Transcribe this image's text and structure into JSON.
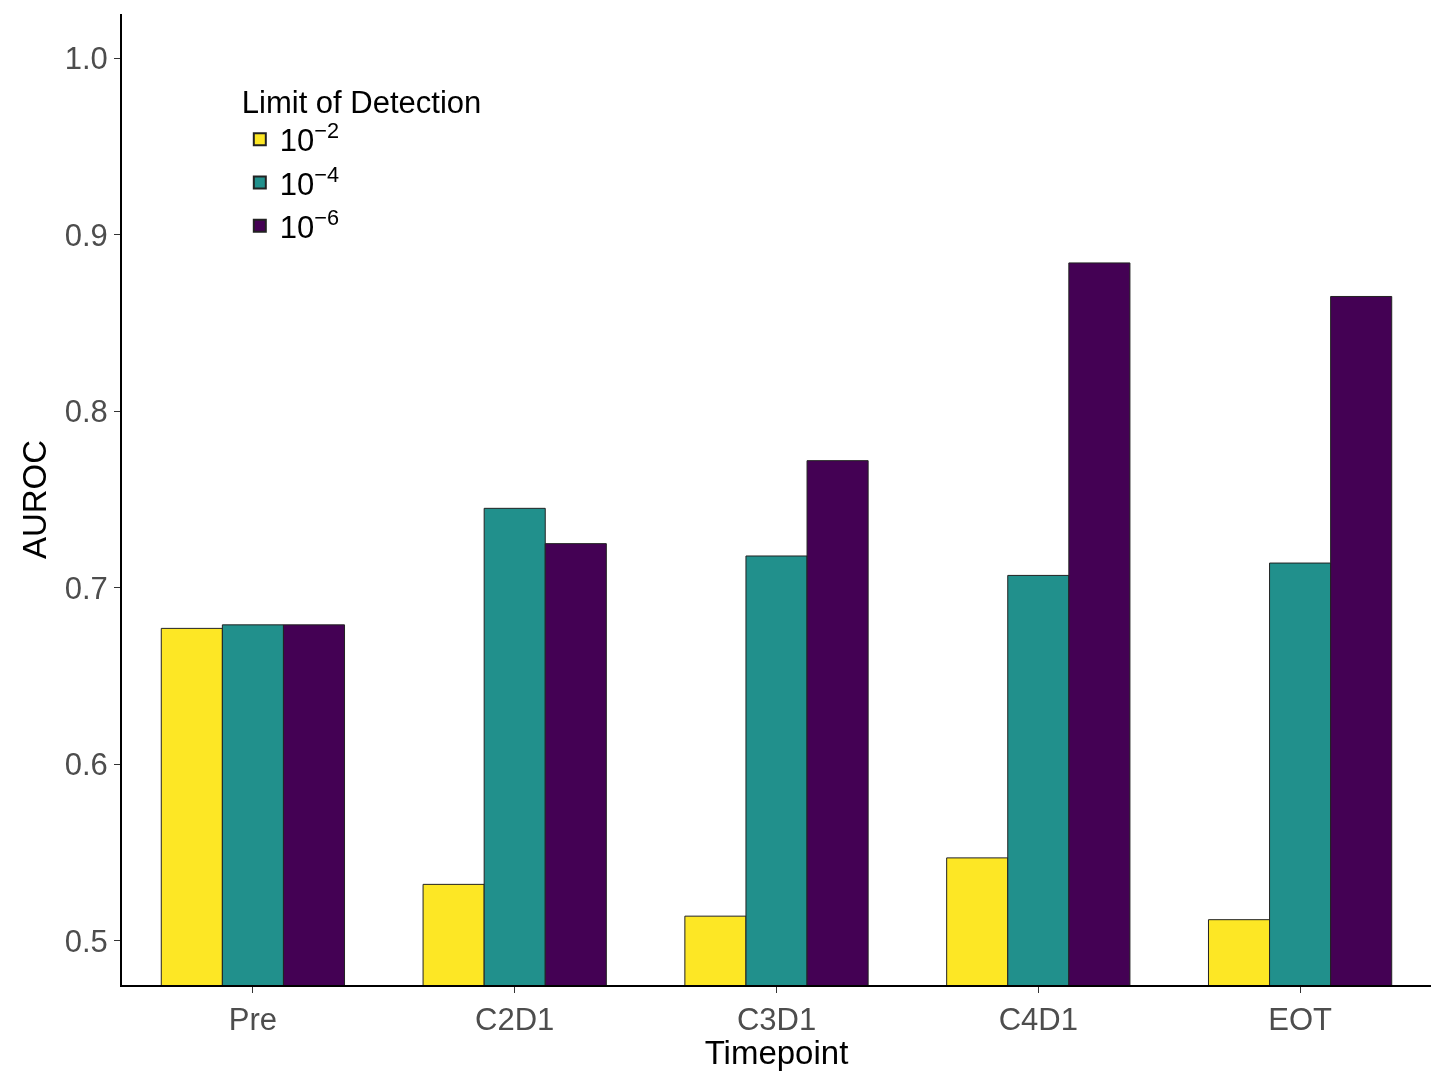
{
  "chart_data": {
    "type": "bar",
    "xlabel": "Timepoint",
    "ylabel": "AUROC",
    "categories": [
      "Pre",
      "C2D1",
      "C3D1",
      "C4D1",
      "EOT"
    ],
    "series": [
      {
        "name": "10$^{−2}$",
        "color": "#fde725",
        "values": [
          0.677,
          0.532,
          0.514,
          0.547,
          0.512
        ]
      },
      {
        "name": "10$^{−4}$",
        "color": "#21908c",
        "values": [
          0.679,
          0.745,
          0.718,
          0.707,
          0.714
        ]
      },
      {
        "name": "10$^{−6}$",
        "color": "#440154",
        "values": [
          0.679,
          0.725,
          0.772,
          0.884,
          0.865
        ]
      }
    ],
    "legend_title": "Limit of Detection",
    "legend": "top left",
    "ylim": [
      0.475,
      1.025
    ],
    "yticks": [
      {
        "value": 0.5,
        "label": "0.5"
      },
      {
        "value": 0.6,
        "label": "0.6"
      },
      {
        "value": 0.7,
        "label": "0.7"
      },
      {
        "value": 0.8,
        "label": "0.8"
      },
      {
        "value": 0.9,
        "label": "0.9"
      },
      {
        "value": 1.0,
        "label": "1.0"
      }
    ]
  }
}
